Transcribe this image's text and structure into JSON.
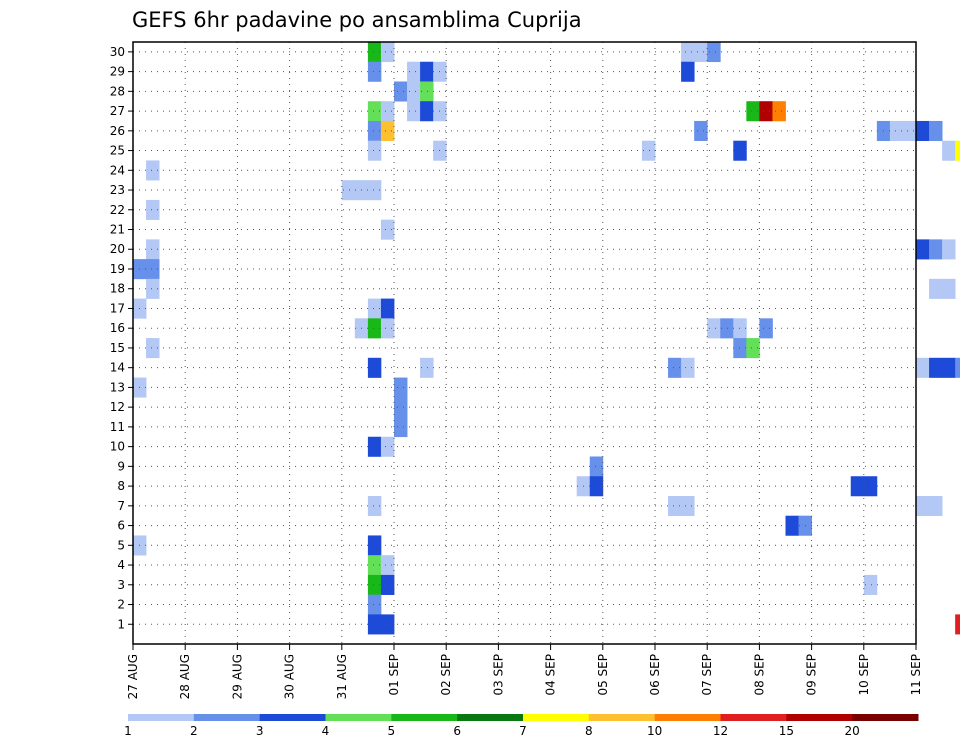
{
  "chart_data": {
    "type": "heatmap",
    "title": "GEFS 6hr padavine po ansamblima Cuprija",
    "xlabel": "",
    "ylabel": "",
    "x_ticks": [
      "27 AUG",
      "28 AUG",
      "29 AUG",
      "30 AUG",
      "31 AUG",
      "01 SEP",
      "02 SEP",
      "03 SEP",
      "04 SEP",
      "05 SEP",
      "06 SEP",
      "07 SEP",
      "08 SEP",
      "09 SEP",
      "10 SEP",
      "11 SEP"
    ],
    "x_step_hours": 6,
    "y_ticks": [
      1,
      2,
      3,
      4,
      5,
      6,
      7,
      8,
      9,
      10,
      11,
      12,
      13,
      14,
      15,
      16,
      17,
      18,
      19,
      20,
      21,
      22,
      23,
      24,
      25,
      26,
      27,
      28,
      29,
      30
    ],
    "ylim": [
      0,
      30.5
    ],
    "grid": true,
    "colorbar": {
      "labels": [
        "1",
        "2",
        "3",
        "4",
        "5",
        "6",
        "7",
        "8",
        "10",
        "12",
        "15",
        "20"
      ],
      "colors": [
        "#b4c8f5",
        "#6690ea",
        "#1e4ad8",
        "#64e058",
        "#18b818",
        "#0a7810",
        "#ffff00",
        "#ffc030",
        "#ff8000",
        "#e02020",
        "#b00000",
        "#7a0000"
      ]
    },
    "cells": [
      [
        30,
        18,
        4
      ],
      [
        30,
        19,
        0
      ],
      [
        30,
        42,
        0
      ],
      [
        30,
        43,
        0
      ],
      [
        30,
        44,
        1
      ],
      [
        29,
        18,
        1
      ],
      [
        29,
        21,
        0
      ],
      [
        29,
        22,
        2
      ],
      [
        29,
        23,
        0
      ],
      [
        29,
        42,
        2
      ],
      [
        28,
        20,
        1
      ],
      [
        28,
        21,
        0
      ],
      [
        28,
        22,
        3
      ],
      [
        27,
        18,
        3
      ],
      [
        27,
        19,
        0
      ],
      [
        27,
        21,
        0
      ],
      [
        27,
        22,
        2
      ],
      [
        27,
        23,
        0
      ],
      [
        27,
        47,
        4
      ],
      [
        27,
        48,
        10
      ],
      [
        27,
        49,
        8
      ],
      [
        26,
        18,
        1
      ],
      [
        26,
        19,
        7
      ],
      [
        26,
        43,
        1
      ],
      [
        26,
        57,
        1
      ],
      [
        26,
        58,
        0
      ],
      [
        26,
        59,
        0
      ],
      [
        26,
        60,
        2
      ],
      [
        26,
        61,
        1
      ],
      [
        26,
        76,
        0
      ],
      [
        25,
        18,
        0
      ],
      [
        25,
        23,
        0
      ],
      [
        25,
        39,
        0
      ],
      [
        25,
        46,
        2
      ],
      [
        25,
        62,
        0
      ],
      [
        25,
        63,
        6
      ],
      [
        25,
        64,
        0
      ],
      [
        25,
        65,
        0
      ],
      [
        25,
        66,
        3
      ],
      [
        25,
        67,
        8
      ],
      [
        25,
        68,
        6
      ],
      [
        25,
        69,
        5
      ],
      [
        25,
        70,
        1
      ],
      [
        25,
        71,
        0
      ],
      [
        25,
        72,
        0
      ],
      [
        25,
        73,
        9
      ],
      [
        25,
        74,
        11
      ],
      [
        25,
        75,
        5
      ],
      [
        25,
        77,
        1
      ],
      [
        25,
        78,
        0
      ],
      [
        24,
        1,
        0
      ],
      [
        24,
        65,
        0
      ],
      [
        24,
        66,
        1
      ],
      [
        23,
        16,
        0
      ],
      [
        23,
        17,
        0
      ],
      [
        23,
        18,
        0
      ],
      [
        23,
        69,
        0
      ],
      [
        23,
        71,
        6
      ],
      [
        23,
        72,
        8
      ],
      [
        23,
        73,
        5
      ],
      [
        23,
        74,
        2
      ],
      [
        23,
        75,
        3
      ],
      [
        22,
        1,
        0
      ],
      [
        22,
        65,
        0
      ],
      [
        22,
        69,
        1
      ],
      [
        21,
        19,
        0
      ],
      [
        20,
        1,
        0
      ],
      [
        20,
        60,
        2
      ],
      [
        20,
        61,
        1
      ],
      [
        20,
        62,
        0
      ],
      [
        19,
        0,
        1
      ],
      [
        19,
        1,
        1
      ],
      [
        18,
        1,
        0
      ],
      [
        18,
        61,
        0
      ],
      [
        18,
        62,
        0
      ],
      [
        18,
        66,
        4
      ],
      [
        18,
        67,
        1
      ],
      [
        17,
        0,
        0
      ],
      [
        17,
        18,
        0
      ],
      [
        17,
        19,
        2
      ],
      [
        16,
        17,
        0
      ],
      [
        16,
        18,
        4
      ],
      [
        16,
        19,
        0
      ],
      [
        16,
        44,
        0
      ],
      [
        16,
        45,
        1
      ],
      [
        16,
        46,
        0
      ],
      [
        16,
        48,
        1
      ],
      [
        16,
        75,
        6
      ],
      [
        16,
        77,
        0
      ],
      [
        16,
        78,
        10
      ],
      [
        16,
        79,
        11
      ],
      [
        16,
        80,
        11
      ],
      [
        16,
        81,
        8
      ],
      [
        15,
        1,
        0
      ],
      [
        15,
        46,
        1
      ],
      [
        15,
        47,
        3
      ],
      [
        14,
        18,
        2
      ],
      [
        14,
        22,
        0
      ],
      [
        14,
        41,
        1
      ],
      [
        14,
        42,
        0
      ],
      [
        14,
        60,
        0
      ],
      [
        14,
        61,
        2
      ],
      [
        14,
        62,
        2
      ],
      [
        14,
        63,
        1
      ],
      [
        14,
        64,
        0
      ],
      [
        14,
        72,
        0
      ],
      [
        13,
        0,
        0
      ],
      [
        13,
        20,
        1
      ],
      [
        13,
        68,
        0
      ],
      [
        12,
        20,
        1
      ],
      [
        11,
        20,
        1
      ],
      [
        10,
        18,
        2
      ],
      [
        10,
        19,
        0
      ],
      [
        9,
        35,
        1
      ],
      [
        9,
        64,
        2
      ],
      [
        9,
        65,
        8
      ],
      [
        8,
        34,
        0
      ],
      [
        8,
        35,
        2
      ],
      [
        8,
        55,
        2
      ],
      [
        8,
        56,
        2
      ],
      [
        7,
        18,
        0
      ],
      [
        7,
        41,
        0
      ],
      [
        7,
        42,
        0
      ],
      [
        7,
        60,
        0
      ],
      [
        7,
        61,
        0
      ],
      [
        7,
        66,
        0
      ],
      [
        7,
        67,
        1
      ],
      [
        6,
        50,
        2
      ],
      [
        6,
        51,
        1
      ],
      [
        6,
        76,
        1
      ],
      [
        6,
        77,
        0
      ],
      [
        6,
        78,
        2
      ],
      [
        5,
        0,
        0
      ],
      [
        5,
        18,
        2
      ],
      [
        4,
        18,
        3
      ],
      [
        4,
        19,
        0
      ],
      [
        3,
        18,
        4
      ],
      [
        3,
        19,
        2
      ],
      [
        3,
        56,
        0
      ],
      [
        3,
        68,
        1
      ],
      [
        3,
        69,
        1
      ],
      [
        3,
        70,
        0
      ],
      [
        3,
        72,
        0
      ],
      [
        2,
        18,
        1
      ],
      [
        2,
        66,
        0
      ],
      [
        2,
        69,
        0
      ],
      [
        2,
        70,
        0
      ],
      [
        2,
        72,
        0
      ],
      [
        2,
        73,
        2
      ],
      [
        1,
        18,
        2
      ],
      [
        1,
        19,
        2
      ],
      [
        1,
        63,
        9
      ],
      [
        1,
        64,
        2
      ],
      [
        1,
        65,
        0
      ],
      [
        1,
        68,
        1
      ],
      [
        1,
        72,
        0
      ],
      [
        1,
        73,
        0
      ]
    ]
  }
}
